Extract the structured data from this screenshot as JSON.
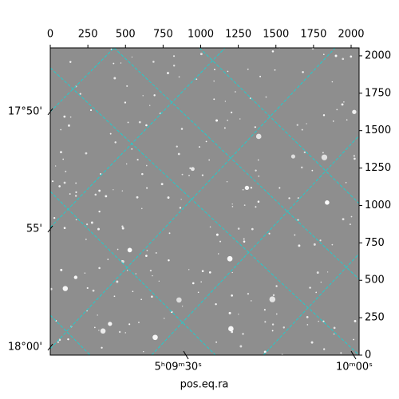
{
  "chart_data": {
    "type": "image",
    "x_label": "pos.eq.ra",
    "xlim": [
      0,
      2053
    ],
    "xticks": [
      0,
      250,
      500,
      750,
      1000,
      1250,
      1500,
      1750,
      2000
    ],
    "ylim": [
      0,
      2053
    ],
    "yticks": [
      0,
      250,
      500,
      750,
      1000,
      1250,
      1500,
      1750,
      2000
    ],
    "ra_ticks": [
      "5ʰ09ᵐ30ˢ",
      "10ᵐ00ˢ"
    ],
    "dec_ticks": [
      "17°50'",
      "55'",
      "18°00'"
    ],
    "grid_color": "#22cccc"
  }
}
